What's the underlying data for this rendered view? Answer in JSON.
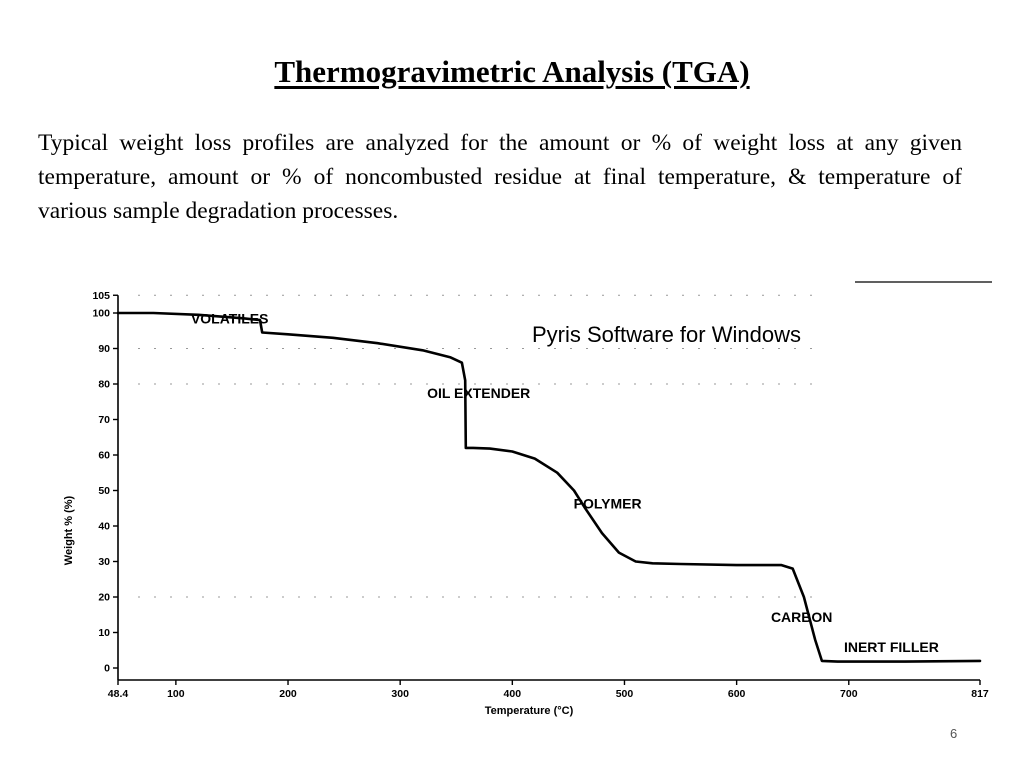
{
  "slide": {
    "title": "Thermogravimetric Analysis (TGA)",
    "intro": "Typical weight loss profiles are analyzed for the amount or % of weight loss at any given temperature, amount or % of noncombusted residue at final temperature, & temperature of various sample degradation processes.",
    "page_number": "6"
  },
  "chart_data": {
    "type": "line",
    "watermark": "Pyris Software for Windows",
    "xlabel": "Temperature (°C)",
    "ylabel": "Weight % (%)",
    "xlim": [
      48.4,
      817
    ],
    "ylim": [
      0,
      105
    ],
    "x_ticks": [
      48.4,
      100,
      200,
      300,
      400,
      500,
      600,
      700,
      817
    ],
    "x_tick_labels": [
      "48.4",
      "100",
      "200",
      "300",
      "400",
      "500",
      "600",
      "700",
      "817"
    ],
    "y_ticks": [
      0,
      10,
      20,
      30,
      40,
      50,
      60,
      70,
      80,
      90,
      100,
      105
    ],
    "y_tick_labels": [
      "0",
      "10",
      "20",
      "30",
      "40",
      "50",
      "60",
      "70",
      "80",
      "90",
      "100",
      "105"
    ],
    "series": [
      {
        "x": [
          48.4,
          80,
          120,
          160,
          175,
          177,
          200,
          240,
          280,
          320,
          345,
          355,
          358,
          358.5,
          365,
          380,
          400,
          420,
          440,
          455,
          465,
          480,
          495,
          510,
          525,
          550,
          600,
          640,
          650,
          660,
          670,
          676,
          690,
          750,
          817
        ],
        "y": [
          100,
          100,
          99.5,
          98.5,
          98,
          94.5,
          94,
          93,
          91.5,
          89.5,
          87.5,
          86,
          81,
          62,
          62,
          61.8,
          61,
          59,
          55,
          50,
          45,
          38,
          32.5,
          30,
          29.5,
          29.3,
          29,
          29,
          28,
          20,
          8,
          2,
          1.8,
          1.8,
          2
        ]
      }
    ],
    "annotations": [
      {
        "text": "VOLATILES",
        "x": 148,
        "y": 97
      },
      {
        "text": "OIL EXTENDER",
        "x": 370,
        "y": 76
      },
      {
        "text": "POLYMER",
        "x": 485,
        "y": 45
      },
      {
        "text": "CARBON",
        "x": 658,
        "y": 13
      },
      {
        "text": "INERT FILLER",
        "x": 738,
        "y": 4.5
      }
    ],
    "grid": false
  }
}
